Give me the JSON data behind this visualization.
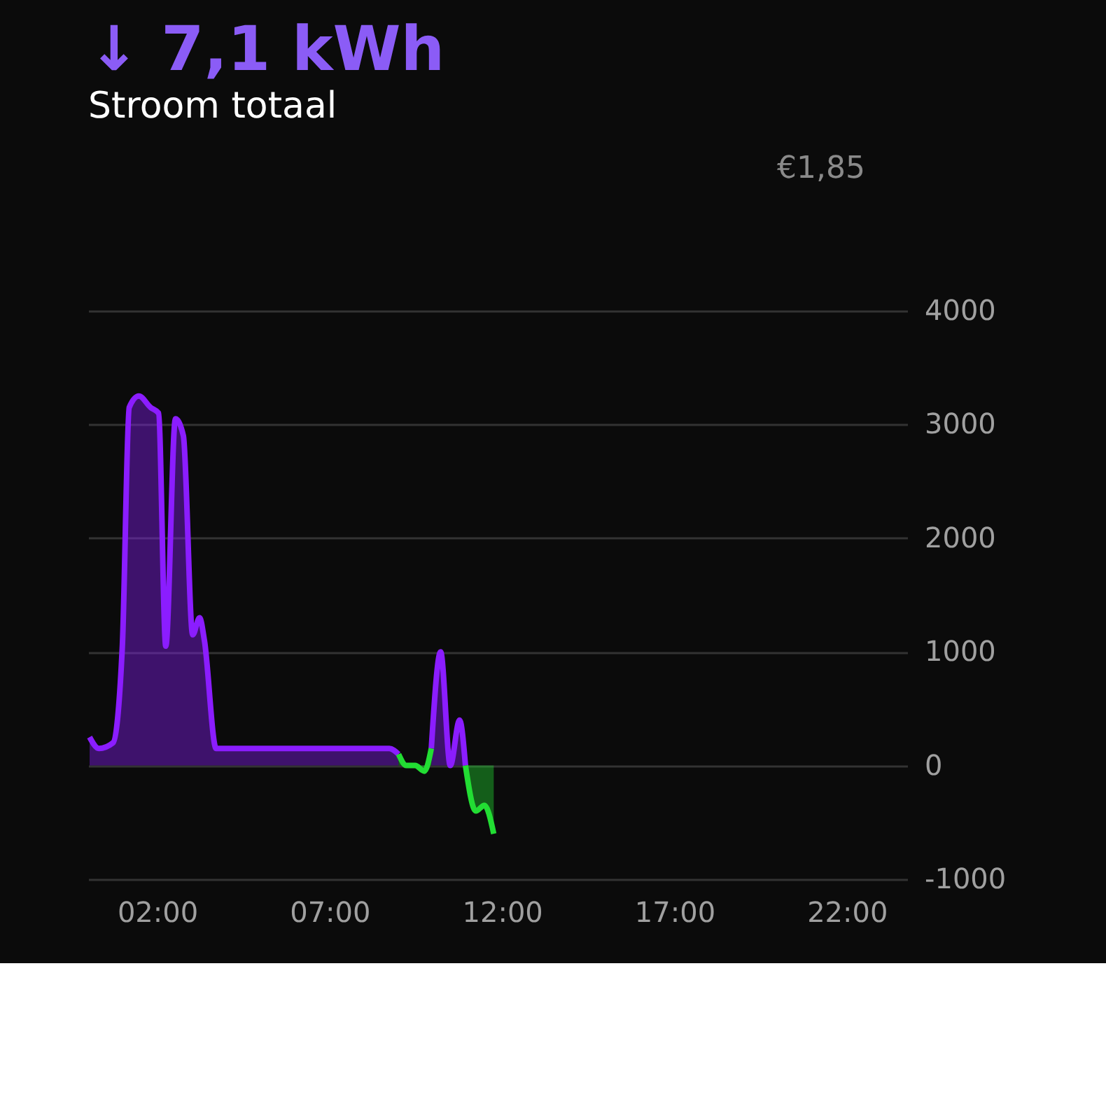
{
  "chart_data": {
    "type": "area",
    "title": "↓ 7,1 kWh",
    "subtitle": "Stroom totaal",
    "annotations": [
      "€1,85"
    ],
    "xlim": [
      0,
      23.75
    ],
    "xticks": [
      {
        "value": 2,
        "label": "02:00"
      },
      {
        "value": 7,
        "label": "07:00"
      },
      {
        "value": 12,
        "label": "12:00"
      },
      {
        "value": 17,
        "label": "17:00"
      },
      {
        "value": 22,
        "label": "22:00"
      }
    ],
    "ylim": [
      -1000,
      4000
    ],
    "yticks": [
      -1000,
      0,
      1000,
      2000,
      3000,
      4000
    ],
    "grid": "y",
    "series": [
      {
        "color": "#8b1dff",
        "x": [
          0.04,
          0.31,
          0.72,
          0.99,
          1.19,
          1.47,
          1.81,
          2.04,
          2.25,
          2.53,
          2.76,
          3.03,
          3.23,
          3.37,
          3.71,
          4.18,
          5.0,
          5.54,
          6.02,
          6.42,
          6.9,
          7.3,
          7.85,
          8.26,
          8.73,
          9.0,
          9.23,
          9.48,
          9.75,
          9.95,
          10.22,
          10.5,
          10.77,
          10.94
        ],
        "values": [
          250,
          150,
          200,
          1050,
          3150,
          3250,
          3150,
          3100,
          1050,
          3050,
          2900,
          1150,
          1300,
          1100,
          150,
          150,
          150,
          150,
          150,
          150,
          150,
          150,
          150,
          150,
          150,
          100,
          null,
          null,
          null,
          150,
          1000,
          0,
          400,
          0
        ]
      },
      {
        "color": "#22dd33",
        "x": [
          9.0,
          9.23,
          9.48,
          9.75,
          9.95,
          10.5,
          10.94,
          11.24,
          11.49,
          11.76
        ],
        "values": [
          100,
          0,
          0,
          -50,
          150,
          null,
          0,
          -400,
          -350,
          -600
        ]
      }
    ]
  }
}
